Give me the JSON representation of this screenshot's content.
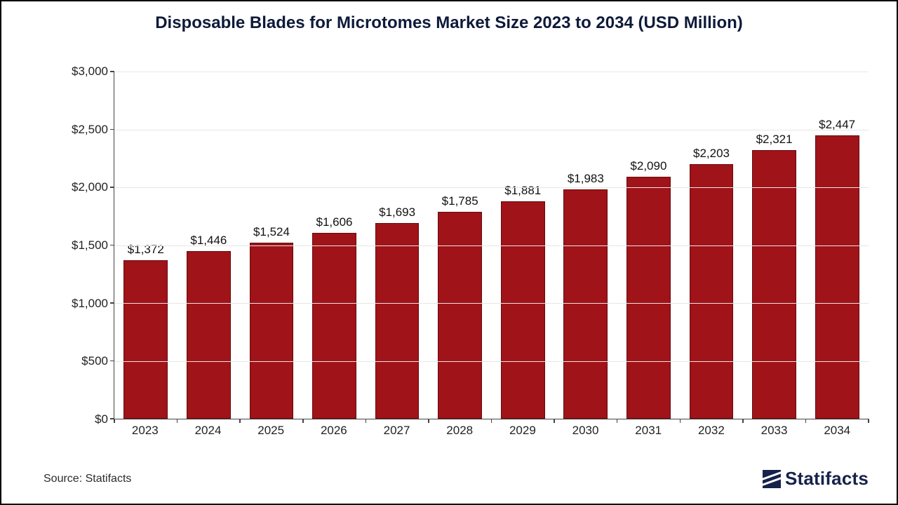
{
  "chart": {
    "type": "bar",
    "title": "Disposable Blades for Microtomes Market Size 2023 to 2034 (USD Million)",
    "title_color": "#0e1a3a",
    "title_fontsize": 24,
    "categories": [
      "2023",
      "2024",
      "2025",
      "2026",
      "2027",
      "2028",
      "2029",
      "2030",
      "2031",
      "2032",
      "2033",
      "2034"
    ],
    "values": [
      1372,
      1446,
      1524,
      1606,
      1693,
      1785,
      1881,
      1983,
      2090,
      2203,
      2321,
      2447
    ],
    "value_labels": [
      "$1,372",
      "$1,446",
      "$1,524",
      "$1,606",
      "$1,693",
      "$1,785",
      "$1,881",
      "$1,983",
      "$2,090",
      "$2,203",
      "$2,321",
      "$2,447"
    ],
    "bar_color": "#a01318",
    "bar_border_color": "#660b0e",
    "bar_width": 0.7,
    "ylim": [
      0,
      3000
    ],
    "ytick_step": 500,
    "ytick_labels": [
      "$0",
      "$500",
      "$1,000",
      "$1,500",
      "$2,000",
      "$2,500",
      "$3,000"
    ],
    "grid_color": "#e6e6e6",
    "axis_color": "#444444",
    "background_color": "#ffffff",
    "border_color": "#000000",
    "label_fontsize": 17,
    "tick_fontsize": 17,
    "data_label_color": "#111111"
  },
  "footer": {
    "source_text": "Source: Statifacts",
    "logo_text": "Statifacts",
    "logo_color": "#16224a"
  }
}
